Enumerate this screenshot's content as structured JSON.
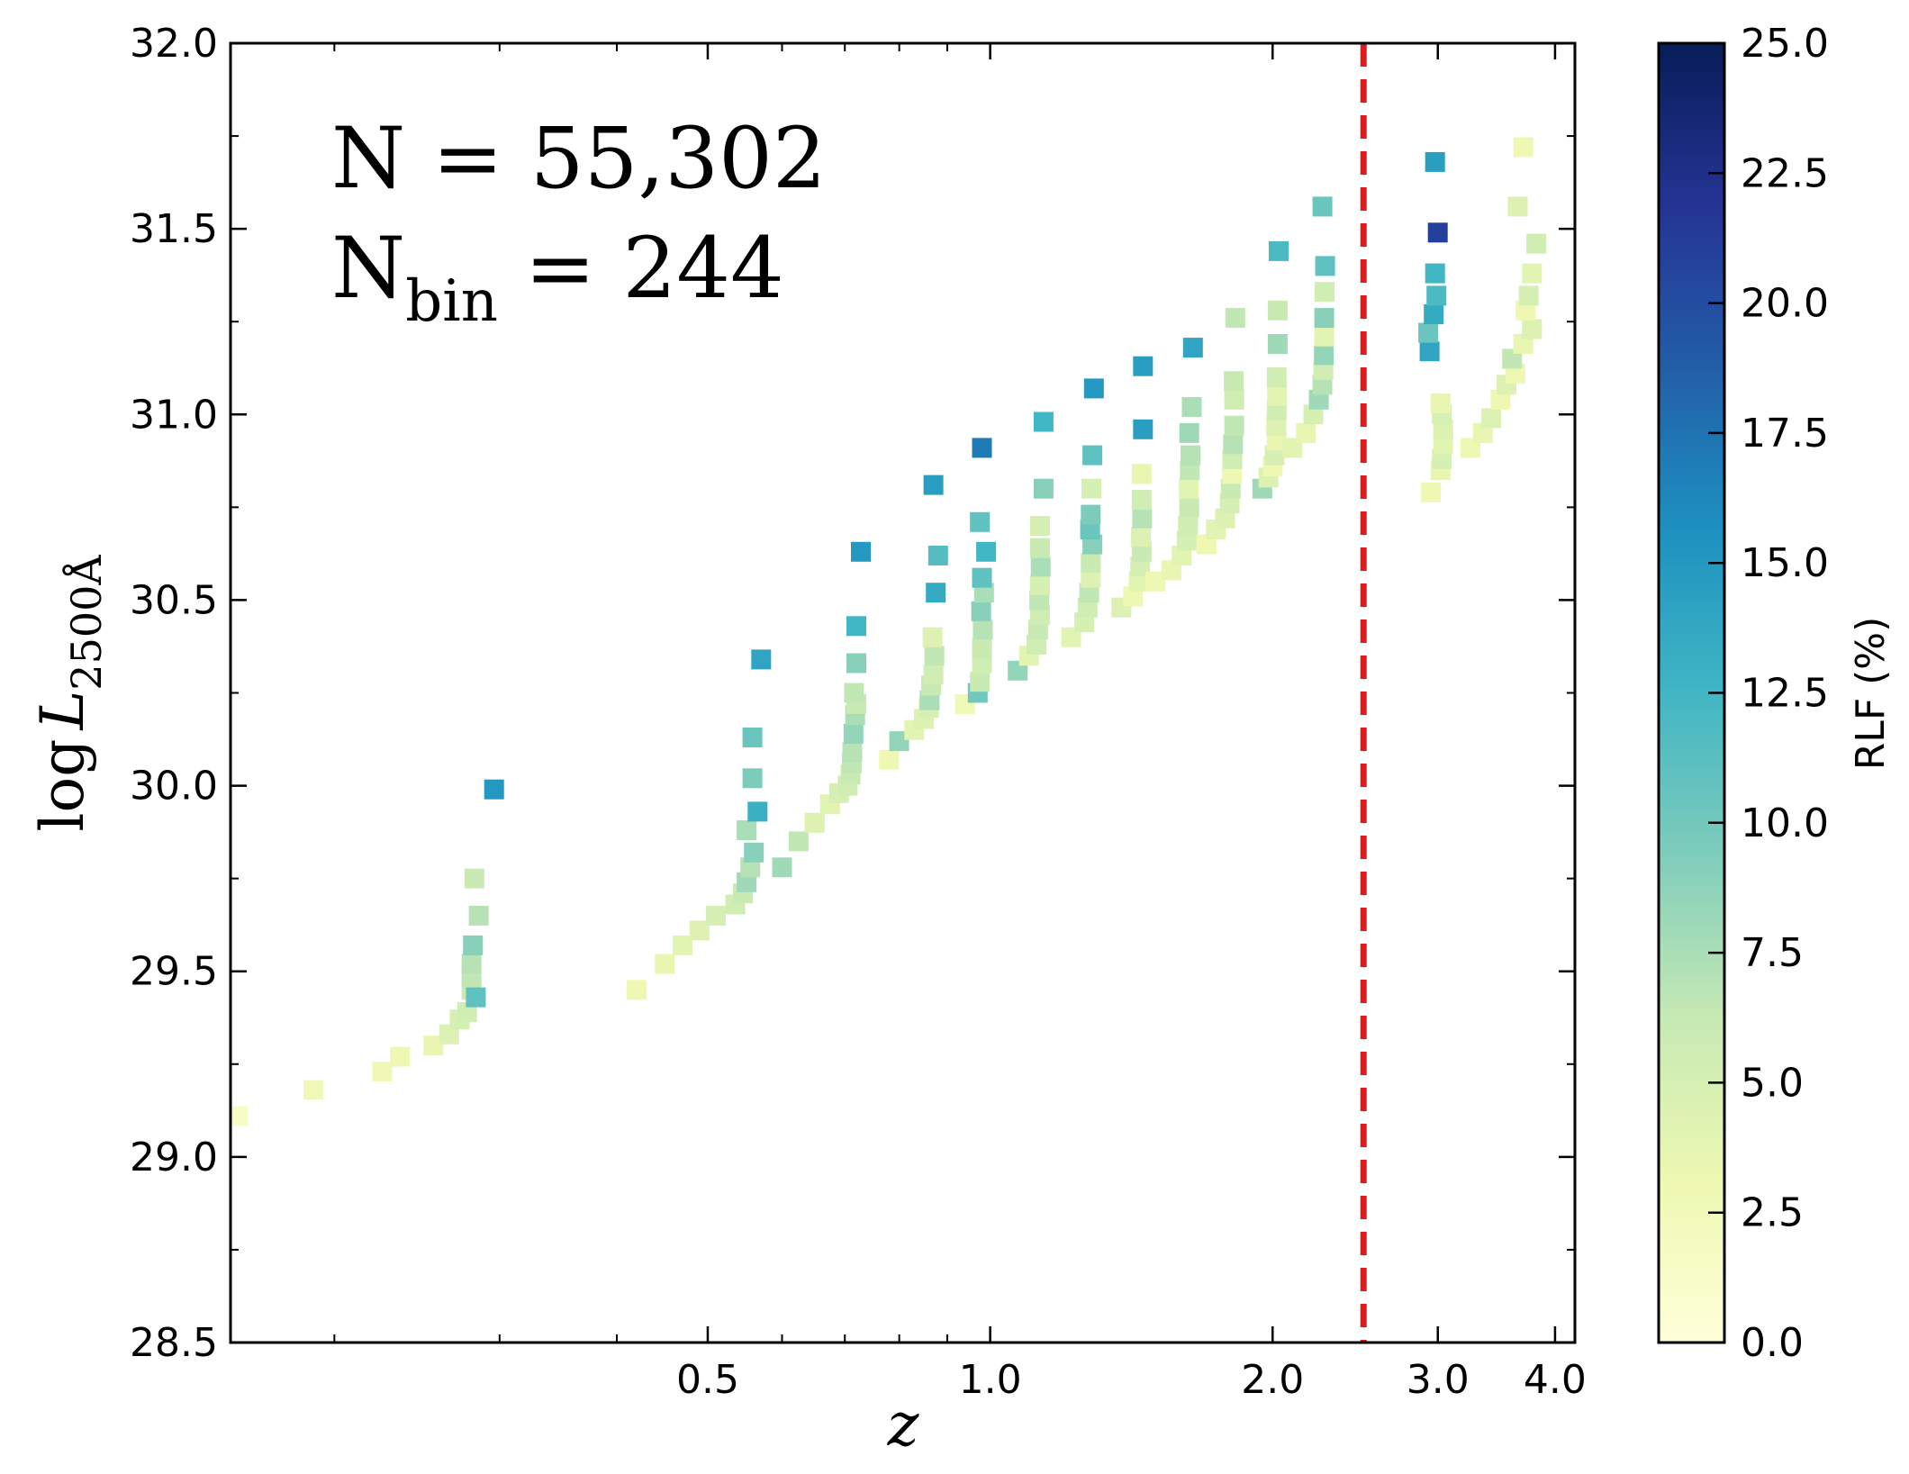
{
  "chart_data": {
    "type": "scatter",
    "x_scale": "log",
    "xlim": [
      0.155,
      4.2
    ],
    "ylim": [
      28.5,
      32.0
    ],
    "x_ticks": [
      {
        "value": 0.5,
        "label": "0.5"
      },
      {
        "value": 1.0,
        "label": "1.0"
      },
      {
        "value": 2.0,
        "label": "2.0"
      },
      {
        "value": 3.0,
        "label": "3.0"
      },
      {
        "value": 4.0,
        "label": "4.0"
      }
    ],
    "y_ticks": [
      {
        "value": 28.5,
        "label": "28.5"
      },
      {
        "value": 29.0,
        "label": "29.0"
      },
      {
        "value": 29.5,
        "label": "29.5"
      },
      {
        "value": 30.0,
        "label": "30.0"
      },
      {
        "value": 30.5,
        "label": "30.5"
      },
      {
        "value": 31.0,
        "label": "31.0"
      },
      {
        "value": 31.5,
        "label": "31.5"
      },
      {
        "value": 32.0,
        "label": "32.0"
      }
    ],
    "x_minor_ticks": [
      0.2,
      0.3,
      0.4,
      0.6,
      0.7,
      0.8,
      0.9
    ],
    "y_minor_step": 0.25,
    "xlabel": "z",
    "ylabel_prefix": "log",
    "ylabel_var": "L",
    "ylabel_sub": "2500Å",
    "annotation_n": "N = 55,302",
    "annotation_nbin_base": "N",
    "annotation_nbin_sub": "bin",
    "annotation_nbin_value": " = 244",
    "vline": {
      "x": 2.5,
      "color": "#e31a1c",
      "style": "dashed"
    },
    "colorbar": {
      "label": "RLF (%)",
      "range": [
        0,
        25
      ],
      "ticks": [
        "0.0",
        "2.5",
        "5.0",
        "7.5",
        "10.0",
        "12.5",
        "15.0",
        "17.5",
        "20.0",
        "22.5",
        "25.0"
      ],
      "colormap": "YlGnBu",
      "stops": [
        "#ffffd9",
        "#edf8b1",
        "#c7e9b4",
        "#7fcdbb",
        "#41b6c4",
        "#1d91c0",
        "#225ea8",
        "#253494",
        "#081d58"
      ]
    },
    "points": [
      [
        0.158,
        29.11,
        1.5
      ],
      [
        0.19,
        29.18,
        2.5
      ],
      [
        0.225,
        29.23,
        2.8
      ],
      [
        0.235,
        29.27,
        3.0
      ],
      [
        0.255,
        29.3,
        3.5
      ],
      [
        0.265,
        29.33,
        4.5
      ],
      [
        0.272,
        29.37,
        5.0
      ],
      [
        0.277,
        29.39,
        5.5
      ],
      [
        0.28,
        29.45,
        6.0
      ],
      [
        0.28,
        29.48,
        6.5
      ],
      [
        0.28,
        29.52,
        7.0
      ],
      [
        0.281,
        29.57,
        9.0
      ],
      [
        0.283,
        29.43,
        11.0
      ],
      [
        0.285,
        29.65,
        7.0
      ],
      [
        0.282,
        29.75,
        6.0
      ],
      [
        0.296,
        29.99,
        15.0
      ],
      [
        0.42,
        29.45,
        3.0
      ],
      [
        0.45,
        29.52,
        3.5
      ],
      [
        0.47,
        29.57,
        4.0
      ],
      [
        0.49,
        29.61,
        4.5
      ],
      [
        0.51,
        29.65,
        5.0
      ],
      [
        0.535,
        29.68,
        5.5
      ],
      [
        0.545,
        29.71,
        6.0
      ],
      [
        0.55,
        29.74,
        8.0
      ],
      [
        0.555,
        29.78,
        7.0
      ],
      [
        0.56,
        29.82,
        9.0
      ],
      [
        0.55,
        29.88,
        7.5
      ],
      [
        0.558,
        30.02,
        9.5
      ],
      [
        0.565,
        29.93,
        13.0
      ],
      [
        0.558,
        30.13,
        10.5
      ],
      [
        0.57,
        30.34,
        14.0
      ],
      [
        0.6,
        29.78,
        8.0
      ],
      [
        0.625,
        29.85,
        6.5
      ],
      [
        0.65,
        29.9,
        4.5
      ],
      [
        0.675,
        29.95,
        4.0
      ],
      [
        0.69,
        29.98,
        5.0
      ],
      [
        0.705,
        30.0,
        5.5
      ],
      [
        0.71,
        30.03,
        6.0
      ],
      [
        0.712,
        30.06,
        6.5
      ],
      [
        0.713,
        30.09,
        7.0
      ],
      [
        0.715,
        30.14,
        8.5
      ],
      [
        0.718,
        30.19,
        7.5
      ],
      [
        0.72,
        30.22,
        6.0
      ],
      [
        0.716,
        30.25,
        6.5
      ],
      [
        0.72,
        30.33,
        9.0
      ],
      [
        0.72,
        30.43,
        12.5
      ],
      [
        0.728,
        30.63,
        15.0
      ],
      [
        0.78,
        30.07,
        3.0
      ],
      [
        0.8,
        30.12,
        8.5
      ],
      [
        0.83,
        30.15,
        4.0
      ],
      [
        0.85,
        30.18,
        4.5
      ],
      [
        0.86,
        30.21,
        5.0
      ],
      [
        0.862,
        30.23,
        7.5
      ],
      [
        0.865,
        30.27,
        6.0
      ],
      [
        0.87,
        30.3,
        5.5
      ],
      [
        0.872,
        30.35,
        6.5
      ],
      [
        0.868,
        30.4,
        4.5
      ],
      [
        0.875,
        30.52,
        13.5
      ],
      [
        0.88,
        30.62,
        11.5
      ],
      [
        0.87,
        30.81,
        14.5
      ],
      [
        0.94,
        30.22,
        2.5
      ],
      [
        0.97,
        30.25,
        10.0
      ],
      [
        0.975,
        30.28,
        6.0
      ],
      [
        0.98,
        30.33,
        5.5
      ],
      [
        0.98,
        30.37,
        6.0
      ],
      [
        0.982,
        30.42,
        7.0
      ],
      [
        0.978,
        30.47,
        9.0
      ],
      [
        0.985,
        30.52,
        7.5
      ],
      [
        0.98,
        30.56,
        11.0
      ],
      [
        0.99,
        30.63,
        12.5
      ],
      [
        0.975,
        30.71,
        11.0
      ],
      [
        0.98,
        30.91,
        17.0
      ],
      [
        1.07,
        30.31,
        8.5
      ],
      [
        1.1,
        30.35,
        4.0
      ],
      [
        1.12,
        30.38,
        5.5
      ],
      [
        1.125,
        30.42,
        6.0
      ],
      [
        1.13,
        30.46,
        5.5
      ],
      [
        1.128,
        30.5,
        6.5
      ],
      [
        1.13,
        30.54,
        5.0
      ],
      [
        1.132,
        30.59,
        7.5
      ],
      [
        1.13,
        30.64,
        6.0
      ],
      [
        1.13,
        30.7,
        5.0
      ],
      [
        1.14,
        30.8,
        9.0
      ],
      [
        1.14,
        30.98,
        12.5
      ],
      [
        1.22,
        30.4,
        4.0
      ],
      [
        1.26,
        30.44,
        5.0
      ],
      [
        1.27,
        30.48,
        5.5
      ],
      [
        1.275,
        30.52,
        6.5
      ],
      [
        1.28,
        30.56,
        4.5
      ],
      [
        1.28,
        30.6,
        6.0
      ],
      [
        1.285,
        30.65,
        9.0
      ],
      [
        1.278,
        30.69,
        10.5
      ],
      [
        1.28,
        30.73,
        9.5
      ],
      [
        1.282,
        30.8,
        5.0
      ],
      [
        1.285,
        30.89,
        11.0
      ],
      [
        1.29,
        31.07,
        15.0
      ],
      [
        1.38,
        30.48,
        4.5
      ],
      [
        1.42,
        30.51,
        3.0
      ],
      [
        1.44,
        30.55,
        4.0
      ],
      [
        1.445,
        30.59,
        5.0
      ],
      [
        1.45,
        30.63,
        6.0
      ],
      [
        1.448,
        30.67,
        4.5
      ],
      [
        1.452,
        30.72,
        7.0
      ],
      [
        1.45,
        30.77,
        5.5
      ],
      [
        1.45,
        30.84,
        3.5
      ],
      [
        1.455,
        30.96,
        14.5
      ],
      [
        1.455,
        31.13,
        14.5
      ],
      [
        1.5,
        30.55,
        3.0
      ],
      [
        1.56,
        30.58,
        3.5
      ],
      [
        1.6,
        30.62,
        4.0
      ],
      [
        1.62,
        30.66,
        5.0
      ],
      [
        1.625,
        30.7,
        5.5
      ],
      [
        1.63,
        30.75,
        6.0
      ],
      [
        1.628,
        30.8,
        4.0
      ],
      [
        1.632,
        30.85,
        6.5
      ],
      [
        1.635,
        30.89,
        7.0
      ],
      [
        1.63,
        30.95,
        8.0
      ],
      [
        1.64,
        31.02,
        7.5
      ],
      [
        1.645,
        31.18,
        14.0
      ],
      [
        1.7,
        30.65,
        3.0
      ],
      [
        1.74,
        30.69,
        4.0
      ],
      [
        1.78,
        30.72,
        4.5
      ],
      [
        1.8,
        30.76,
        5.0
      ],
      [
        1.805,
        30.8,
        6.0
      ],
      [
        1.81,
        30.84,
        3.0
      ],
      [
        1.812,
        30.88,
        5.5
      ],
      [
        1.815,
        30.92,
        7.0
      ],
      [
        1.82,
        30.97,
        6.5
      ],
      [
        1.82,
        31.04,
        5.5
      ],
      [
        1.818,
        31.09,
        6.0
      ],
      [
        1.825,
        31.26,
        6.5
      ],
      [
        1.95,
        30.8,
        8.0
      ],
      [
        1.98,
        30.83,
        4.5
      ],
      [
        2.0,
        30.86,
        3.0
      ],
      [
        2.01,
        30.89,
        5.0
      ],
      [
        2.02,
        30.93,
        3.5
      ],
      [
        2.018,
        30.97,
        4.5
      ],
      [
        2.02,
        31.01,
        5.5
      ],
      [
        2.022,
        31.05,
        4.0
      ],
      [
        2.02,
        31.1,
        5.5
      ],
      [
        2.025,
        31.19,
        8.0
      ],
      [
        2.025,
        31.28,
        6.0
      ],
      [
        2.03,
        31.44,
        12.0
      ],
      [
        2.1,
        30.91,
        4.0
      ],
      [
        2.17,
        30.95,
        3.5
      ],
      [
        2.21,
        31.0,
        5.0
      ],
      [
        2.24,
        31.04,
        8.0
      ],
      [
        2.26,
        31.08,
        7.0
      ],
      [
        2.265,
        31.12,
        5.5
      ],
      [
        2.268,
        31.16,
        8.5
      ],
      [
        2.27,
        31.21,
        4.0
      ],
      [
        2.27,
        31.26,
        9.0
      ],
      [
        2.272,
        31.33,
        5.5
      ],
      [
        2.275,
        31.4,
        11.0
      ],
      [
        2.26,
        31.56,
        10.5
      ],
      [
        2.95,
        30.79,
        3.0
      ],
      [
        3.02,
        30.85,
        3.5
      ],
      [
        3.03,
        30.88,
        5.0
      ],
      [
        3.04,
        30.92,
        4.0
      ],
      [
        3.04,
        30.96,
        4.5
      ],
      [
        3.03,
        31.0,
        5.0
      ],
      [
        3.02,
        31.03,
        3.5
      ],
      [
        2.94,
        31.17,
        14.0
      ],
      [
        2.93,
        31.22,
        10.5
      ],
      [
        2.97,
        31.27,
        13.5
      ],
      [
        2.99,
        31.32,
        12.0
      ],
      [
        2.98,
        31.38,
        12.5
      ],
      [
        3.0,
        31.49,
        21.0
      ],
      [
        2.98,
        31.68,
        14.5
      ],
      [
        3.25,
        30.91,
        3.0
      ],
      [
        3.35,
        30.95,
        3.5
      ],
      [
        3.42,
        30.99,
        4.5
      ],
      [
        3.5,
        31.04,
        3.0
      ],
      [
        3.55,
        31.08,
        4.5
      ],
      [
        3.63,
        31.11,
        3.0
      ],
      [
        3.6,
        31.15,
        6.5
      ],
      [
        3.7,
        31.19,
        3.5
      ],
      [
        3.78,
        31.23,
        4.5
      ],
      [
        3.72,
        31.28,
        3.0
      ],
      [
        3.75,
        31.32,
        5.0
      ],
      [
        3.78,
        31.38,
        4.0
      ],
      [
        3.82,
        31.46,
        5.5
      ],
      [
        3.65,
        31.56,
        4.5
      ],
      [
        3.7,
        31.72,
        3.0
      ]
    ]
  }
}
